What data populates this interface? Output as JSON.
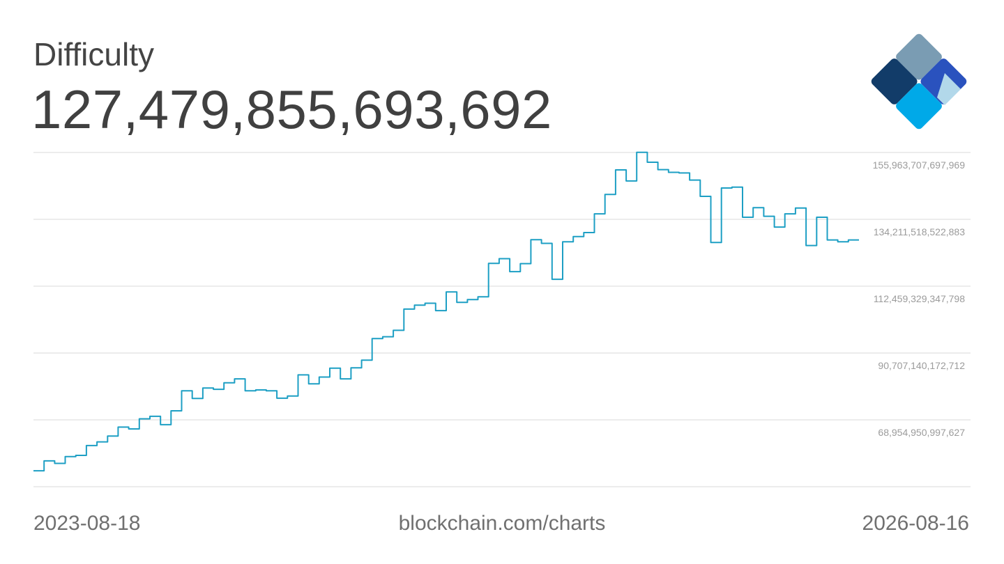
{
  "header": {
    "title": "Difficulty",
    "current_value": "127,479,855,693,692"
  },
  "footer": {
    "start_date": "2023-08-18",
    "source": "blockchain.com/charts",
    "end_date": "2026-08-16"
  },
  "logo": {
    "icon": "blockchain-diamond-logo",
    "colors": [
      "#7a9cb3",
      "#123c69",
      "#2a52be",
      "#00a9e8",
      "#b2d8ea"
    ]
  },
  "colors": {
    "line": "#1d9fc4",
    "grid": "#d9d9d9",
    "tick_text": "#9b9b9b"
  },
  "chart_data": {
    "type": "line",
    "title": "Difficulty",
    "x_range": [
      "2023-08-18",
      "2026-08-16"
    ],
    "ylim": [
      47202761822541,
      155963707697969
    ],
    "y_tick_labels": [
      "155,963,707,697,969",
      "134,211,518,522,883",
      "112,459,329,347,798",
      "90,707,140,172,712",
      "68,954,950,997,627"
    ],
    "grid": true,
    "series": [
      {
        "values": [
          52400000000000,
          55600000000000,
          54800000000000,
          57000000000000,
          57400000000000,
          60600000000000,
          61800000000000,
          63700000000000,
          66600000000000,
          66000000000000,
          69300000000000,
          70100000000000,
          67400000000000,
          71900000000000,
          78400000000000,
          75900000000000,
          79300000000000,
          78900000000000,
          81000000000000,
          82300000000000,
          78400000000000,
          78700000000000,
          78400000000000,
          76000000000000,
          76700000000000,
          83600000000000,
          80700000000000,
          82900000000000,
          85800000000000,
          82300000000000,
          85900000000000,
          88400000000000,
          95400000000000,
          96000000000000,
          98100000000000,
          105000000000000,
          106300000000000,
          106900000000000,
          104500000000000,
          110600000000000,
          107200000000000,
          108100000000000,
          109000000000000,
          119900000000000,
          121400000000000,
          117200000000000,
          119800000000000,
          127600000000000,
          126400000000000,
          114700000000000,
          126900000000000,
          128600000000000,
          129900000000000,
          136000000000000,
          142300000000000,
          150300000000000,
          146700000000000,
          156000000000000,
          152800000000000,
          150400000000000,
          149500000000000,
          149300000000000,
          147000000000000,
          141700000000000,
          126700000000000,
          144400000000000,
          144700000000000,
          134900000000000,
          138000000000000,
          135200000000000,
          131700000000000,
          136000000000000,
          137900000000000,
          125700000000000,
          134900000000000,
          127500000000000,
          126900000000000,
          127500000000000
        ]
      }
    ]
  }
}
